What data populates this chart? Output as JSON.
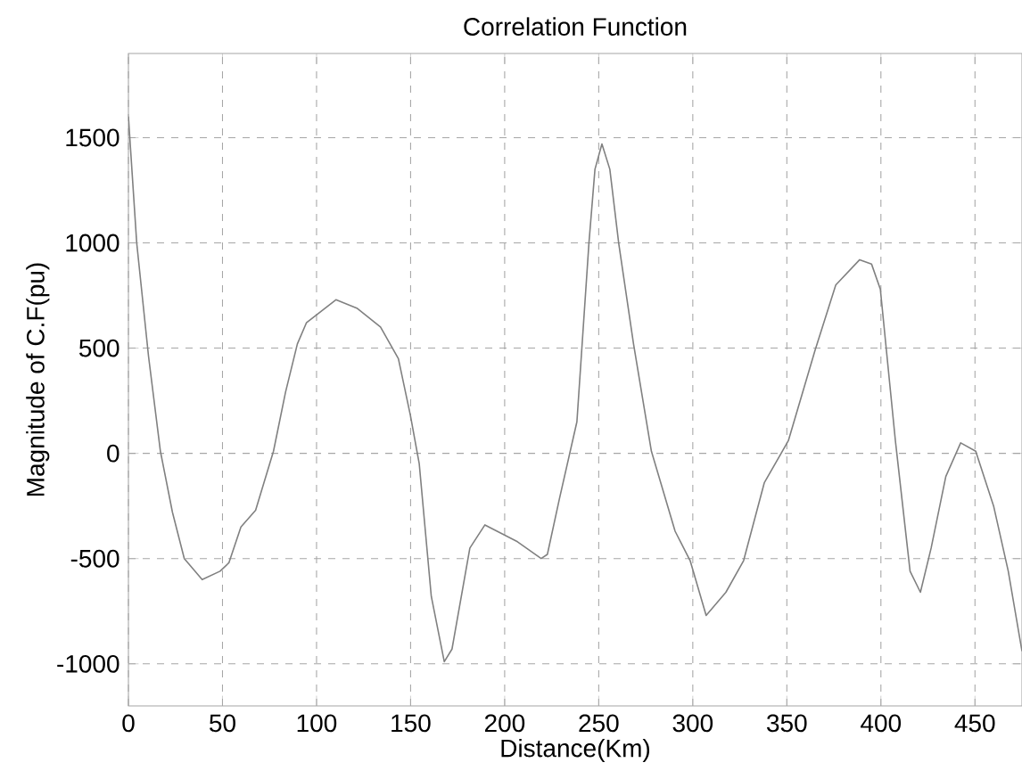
{
  "chart_data": {
    "type": "line",
    "title": "Correlation Function",
    "xlabel": "Distance(Km)",
    "ylabel": "Magnitude of C.F(pu)",
    "xlim": [
      0,
      475
    ],
    "ylim": [
      -1200,
      1900
    ],
    "xticks": [
      0,
      50,
      100,
      150,
      200,
      250,
      300,
      350,
      400,
      450
    ],
    "yticks": [
      -1000,
      -500,
      0,
      500,
      1000,
      1500
    ],
    "grid": true,
    "line_style": "solid",
    "series": [
      {
        "color": "#808080",
        "x": [
          0,
          4.4,
          10.7,
          17,
          23.4,
          29.7,
          39.2,
          48.7,
          53.4,
          59.8,
          67.6,
          77.1,
          83.5,
          89.8,
          94.6,
          110.3,
          121.4,
          134,
          143.5,
          149.9,
          154.6,
          161,
          167.9,
          172,
          181.5,
          189.5,
          206.8,
          219.4,
          222.7,
          229,
          238.4,
          244.8,
          248,
          251.7,
          255.9,
          260.6,
          268.5,
          278,
          290.6,
          298.6,
          307.1,
          317.6,
          327,
          338,
          350.8,
          365,
          376,
          388.7,
          395,
          399.7,
          407.7,
          415.5,
          421,
          426.7,
          434.5,
          442.4,
          450.4,
          459.9,
          467.7,
          475
        ],
        "values": [
          1600,
          1000,
          460,
          10,
          -280,
          -500,
          -600,
          -560,
          -520,
          -350,
          -270,
          10,
          290,
          520,
          620,
          730,
          690,
          600,
          450,
          180,
          -50,
          -680,
          -990,
          -930,
          -450,
          -340,
          -420,
          -500,
          -480,
          -220,
          150,
          1000,
          1350,
          1470,
          1350,
          1000,
          520,
          10,
          -370,
          -510,
          -770,
          -660,
          -510,
          -140,
          60,
          490,
          800,
          920,
          900,
          780,
          60,
          -560,
          -660,
          -450,
          -110,
          50,
          10,
          -250,
          -560,
          -940
        ]
      }
    ]
  }
}
